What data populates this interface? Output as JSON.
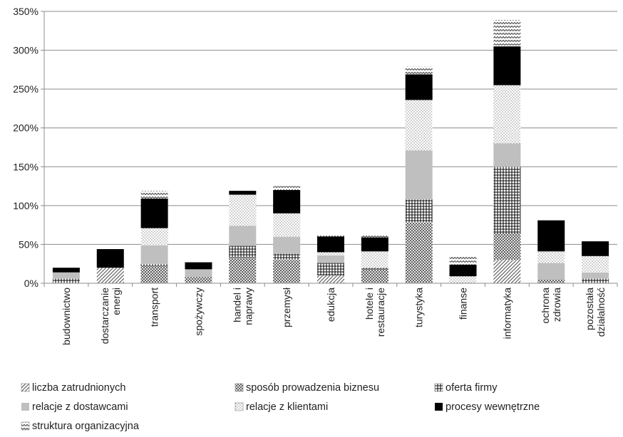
{
  "chart_data": {
    "type": "bar",
    "stacked": true,
    "categories": [
      "budownictwo",
      "dostarczanie energi",
      "transport",
      "spożywczy",
      "handel i naprawy",
      "przemysł",
      "edukcja",
      "hotele i restauracje",
      "turystyka",
      "finanse",
      "informatyka",
      "ochrona zdrowia",
      "pozostała działalność"
    ],
    "category_lines": [
      [
        "budownictwo"
      ],
      [
        "dostarczanie",
        "energi"
      ],
      [
        "transport"
      ],
      [
        "spożywczy"
      ],
      [
        "handel i",
        "naprawy"
      ],
      [
        "przemysł"
      ],
      [
        "edukcja"
      ],
      [
        "hotele i",
        "restauracje"
      ],
      [
        "turystyka"
      ],
      [
        "finanse"
      ],
      [
        "informatyka"
      ],
      [
        "ochrona",
        "zdrowia"
      ],
      [
        "pozostała",
        "działalność"
      ]
    ],
    "series": [
      {
        "name": "liczba zatrudnionych",
        "pattern": "diag-hatch",
        "values": [
          0,
          20,
          0,
          0,
          0,
          0,
          10,
          0,
          0,
          0,
          30,
          0,
          0
        ]
      },
      {
        "name": "sposób prowadzenia biznesu",
        "pattern": "dense-crosshatch",
        "values": [
          0,
          0,
          22,
          8,
          33,
          30,
          0,
          18,
          78,
          0,
          35,
          5,
          0
        ]
      },
      {
        "name": "oferta firmy",
        "pattern": "grid",
        "values": [
          6,
          0,
          3,
          0,
          15,
          8,
          16,
          2,
          30,
          0,
          85,
          0,
          6
        ]
      },
      {
        "name": "relacje z dostawcami",
        "pattern": "gray",
        "values": [
          8,
          0,
          24,
          10,
          26,
          22,
          10,
          0,
          63,
          0,
          30,
          21,
          8
        ]
      },
      {
        "name": "relacje z klientami",
        "pattern": "dots",
        "values": [
          0,
          0,
          22,
          0,
          40,
          30,
          4,
          21,
          65,
          9,
          75,
          15,
          21
        ]
      },
      {
        "name": "procesy wewnętrzne",
        "pattern": "black",
        "values": [
          6,
          24,
          38,
          9,
          5,
          30,
          20,
          18,
          33,
          15,
          50,
          40,
          19
        ]
      },
      {
        "name": "struktura organizacyjna",
        "pattern": "waves",
        "values": [
          0,
          0,
          10,
          0,
          0,
          5,
          2,
          3,
          10,
          10,
          34,
          0,
          0
        ]
      }
    ],
    "y_ticks": [
      "0%",
      "50%",
      "100%",
      "150%",
      "200%",
      "250%",
      "300%",
      "350%"
    ],
    "ylim": [
      0,
      350
    ],
    "y_unit": "%",
    "grid": true,
    "legend_position": "bottom",
    "title": "",
    "xlabel": "",
    "ylabel": ""
  }
}
